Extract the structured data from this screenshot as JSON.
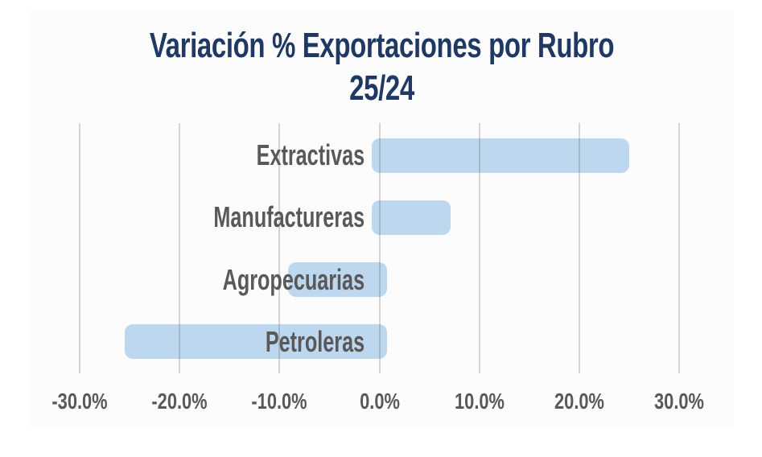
{
  "page": {
    "background": "#ffffff",
    "canvas_background": "#fcfcfc"
  },
  "chart_data": {
    "type": "bar",
    "orientation": "horizontal",
    "title": "Variación % Exportaciones por Rubro 25/24",
    "title_lines": [
      "Variación % Exportaciones por Rubro",
      "25/24"
    ],
    "categories": [
      "Extractivas",
      "Manufactureras",
      "Agropecuarias",
      "Petroleras"
    ],
    "values": [
      25.0,
      7.1,
      -9.1,
      -25.5
    ],
    "unit": "%",
    "xlabel": "",
    "ylabel": "",
    "xlim": [
      -35,
      35
    ],
    "xticks": [
      -30,
      -20,
      -10,
      0,
      10,
      20,
      30
    ],
    "xtick_labels": [
      "-30.0%",
      "-20.0%",
      "-10.0%",
      "0.0%",
      "10.0%",
      "20.0%",
      "30.0%"
    ],
    "grid": "vertical-only",
    "gridlines_over_bars": true,
    "legend": "none",
    "data_labels": "none"
  },
  "colors": {
    "title": "#1F3864",
    "bar_fill": "#BDD7EE",
    "category_label": "#595959",
    "axis_label": "#595959",
    "gridline_rgba": "rgba(89,89,89,0.24)"
  }
}
